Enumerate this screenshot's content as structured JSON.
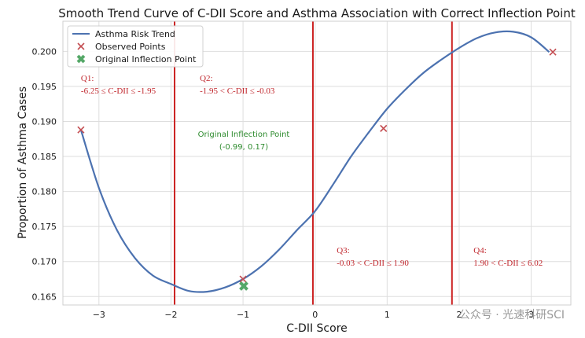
{
  "chart_data": {
    "type": "line",
    "title": "Smooth Trend Curve of C-DII Score and Asthma Association with Correct Inflection Point",
    "xlabel": "C-DII Score",
    "ylabel": "Proportion of Asthma Cases",
    "xlim": [
      -3.5,
      3.55
    ],
    "ylim": [
      0.1638,
      0.2043
    ],
    "x_ticks": [
      -3,
      -2,
      -1,
      0,
      1,
      2,
      3
    ],
    "x_tick_labels": [
      "−3",
      "−2",
      "−1",
      "0",
      "1",
      "2",
      "3"
    ],
    "y_ticks": [
      0.165,
      0.17,
      0.175,
      0.18,
      0.185,
      0.19,
      0.195,
      0.2
    ],
    "y_tick_labels": [
      "0.165",
      "0.170",
      "0.175",
      "0.180",
      "0.185",
      "0.190",
      "0.195",
      "0.200"
    ],
    "grid": true,
    "legend_position": "top-left",
    "series": [
      {
        "name": "Asthma Risk Trend",
        "kind": "line",
        "color": "#4c72b0",
        "x": [
          -3.25,
          -3.0,
          -2.75,
          -2.5,
          -2.25,
          -2.0,
          -1.75,
          -1.5,
          -1.25,
          -1.0,
          -0.75,
          -0.5,
          -0.25,
          0.0,
          0.25,
          0.5,
          0.75,
          1.0,
          1.25,
          1.5,
          1.75,
          2.0,
          2.25,
          2.5,
          2.75,
          3.0,
          3.25
        ],
        "y": [
          0.1888,
          0.1805,
          0.1745,
          0.1705,
          0.168,
          0.1668,
          0.1658,
          0.1657,
          0.1663,
          0.1675,
          0.1693,
          0.1717,
          0.1745,
          0.1772,
          0.181,
          0.185,
          0.1885,
          0.1918,
          0.1945,
          0.1969,
          0.1988,
          0.2005,
          0.2019,
          0.2027,
          0.2028,
          0.202,
          0.1999
        ]
      },
      {
        "name": "Observed Points",
        "kind": "scatter",
        "marker": "x",
        "color": "#c44e52",
        "x": [
          -3.25,
          -1.0,
          0.95,
          3.3
        ],
        "y": [
          0.1888,
          0.1675,
          0.189,
          0.1999
        ]
      },
      {
        "name": "Original Inflection Point",
        "kind": "scatter",
        "marker": "X",
        "color": "#55a868",
        "x": [
          -0.99
        ],
        "y": [
          0.1665
        ]
      }
    ],
    "vertical_lines": {
      "color": "#cc2222",
      "x": [
        -1.95,
        -0.03,
        1.9
      ]
    },
    "annotations": [
      {
        "lines": [
          "Q1:",
          "-6.25 ≤ C-DII ≤ -1.95"
        ],
        "color": "#c0272d",
        "x": -3.25,
        "y": 0.1958
      },
      {
        "lines": [
          "Q2:",
          "-1.95 < C-DII ≤ -0.03"
        ],
        "color": "#c0272d",
        "x": -1.6,
        "y": 0.1958
      },
      {
        "lines": [
          "Q3:",
          "-0.03 < C-DII ≤ 1.90"
        ],
        "color": "#c0272d",
        "x": 0.3,
        "y": 0.1712
      },
      {
        "lines": [
          "Q4:",
          "1.90 < C-DII ≤ 6.02"
        ],
        "color": "#c0272d",
        "x": 2.2,
        "y": 0.1712
      },
      {
        "lines": [
          "Original Inflection Point",
          "(-0.99, 0.17)"
        ],
        "color": "#2e8b2e",
        "x": -0.99,
        "y": 0.1878,
        "anchor": "middle"
      }
    ]
  },
  "watermark": "公众号 · 光速科研SCI"
}
